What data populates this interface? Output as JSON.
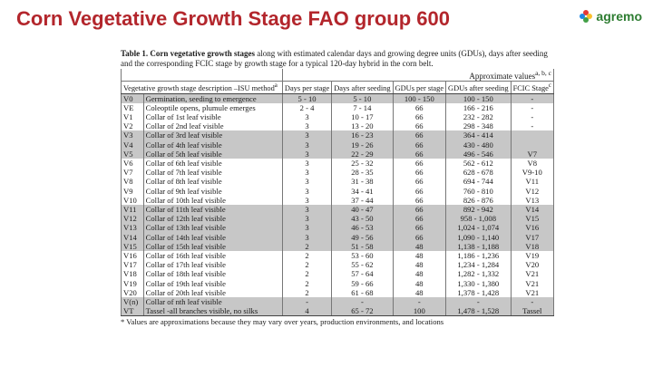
{
  "slide": {
    "title": "Corn Vegetative Growth Stage FAO group 600"
  },
  "logo": {
    "text": "agremo",
    "colors": [
      "#e53935",
      "#fbc02d",
      "#43a047",
      "#1e88e5"
    ]
  },
  "doc": {
    "caption_bold": "Table 1.  Corn vegetative growth stages",
    "caption_rest": " along with estimated calendar days and growing degree units (GDUs), days after seeding and the corresponding FCIC stage by growth stage for a typical 120-day hybrid in the corn belt.",
    "approx_label": "Approximate values",
    "approx_marks": "a, b, c",
    "columns": {
      "desc": "Vegetative growth stage description –ISU method",
      "desc_mark": "a",
      "days_per": "Days per stage",
      "days_after": "Days after seeding",
      "gdu_per": "GDUs per stage",
      "gdu_after": "GDUs after seeding",
      "fcic": "FCIC Stage",
      "fcic_mark": "c"
    },
    "rows": [
      {
        "code": "V0",
        "desc": "Germination, seeding to emergence",
        "days_per": "5 - 10",
        "days_after": "5 - 10",
        "gdu_per": "100 - 150",
        "gdu_after": "100 - 150",
        "fcic": "-"
      },
      {
        "code": "VE",
        "desc": "Coleoptile opens, plumule emerges",
        "days_per": "2 - 4",
        "days_after": "7 - 14",
        "gdu_per": "66",
        "gdu_after": "166 - 216",
        "fcic": "-"
      },
      {
        "code": "V1",
        "desc": "Collar of 1st leaf visible",
        "days_per": "3",
        "days_after": "10 - 17",
        "gdu_per": "66",
        "gdu_after": "232 - 282",
        "fcic": "-"
      },
      {
        "code": "V2",
        "desc": "Collar of 2nd leaf visible",
        "days_per": "3",
        "days_after": "13 - 20",
        "gdu_per": "66",
        "gdu_after": "298 - 348",
        "fcic": "-"
      },
      {
        "code": "V3",
        "desc": "Collar of 3rd leaf visible",
        "days_per": "3",
        "days_after": "16 - 23",
        "gdu_per": "66",
        "gdu_after": "364 - 414",
        "fcic": ""
      },
      {
        "code": "V4",
        "desc": "Collar of 4th leaf visible",
        "days_per": "3",
        "days_after": "19 - 26",
        "gdu_per": "66",
        "gdu_after": "430 - 480",
        "fcic": ""
      },
      {
        "code": "V5",
        "desc": "Collar of 5th leaf visible",
        "days_per": "3",
        "days_after": "22 - 29",
        "gdu_per": "66",
        "gdu_after": "496 - 546",
        "fcic": "V7"
      },
      {
        "code": "V6",
        "desc": "Collar of 6th leaf visible",
        "days_per": "3",
        "days_after": "25 - 32",
        "gdu_per": "66",
        "gdu_after": "562 - 612",
        "fcic": "V8"
      },
      {
        "code": "V7",
        "desc": "Collar of 7th leaf visible",
        "days_per": "3",
        "days_after": "28 - 35",
        "gdu_per": "66",
        "gdu_after": "628 - 678",
        "fcic": "V9-10"
      },
      {
        "code": "V8",
        "desc": "Collar of 8th leaf visible",
        "days_per": "3",
        "days_after": "31 - 38",
        "gdu_per": "66",
        "gdu_after": "694 - 744",
        "fcic": "V11"
      },
      {
        "code": "V9",
        "desc": "Collar of 9th leaf visible",
        "days_per": "3",
        "days_after": "34 - 41",
        "gdu_per": "66",
        "gdu_after": "760 - 810",
        "fcic": "V12"
      },
      {
        "code": "V10",
        "desc": "Collar of 10th leaf visible",
        "days_per": "3",
        "days_after": "37 - 44",
        "gdu_per": "66",
        "gdu_after": "826 - 876",
        "fcic": "V13"
      },
      {
        "code": "V11",
        "desc": "Collar of 11th leaf visible",
        "days_per": "3",
        "days_after": "40 - 47",
        "gdu_per": "66",
        "gdu_after": "892 - 942",
        "fcic": "V14"
      },
      {
        "code": "V12",
        "desc": "Collar of 12th leaf visible",
        "days_per": "3",
        "days_after": "43 - 50",
        "gdu_per": "66",
        "gdu_after": "958 - 1,008",
        "fcic": "V15"
      },
      {
        "code": "V13",
        "desc": "Collar of 13th leaf visible",
        "days_per": "3",
        "days_after": "46 - 53",
        "gdu_per": "66",
        "gdu_after": "1,024 - 1,074",
        "fcic": "V16"
      },
      {
        "code": "V14",
        "desc": "Collar of 14th leaf visible",
        "days_per": "3",
        "days_after": "49 - 56",
        "gdu_per": "66",
        "gdu_after": "1,090 - 1,140",
        "fcic": "V17"
      },
      {
        "code": "V15",
        "desc": "Collar of 15th leaf visible",
        "days_per": "2",
        "days_after": "51 - 58",
        "gdu_per": "48",
        "gdu_after": "1,138 - 1,188",
        "fcic": "V18"
      },
      {
        "code": "V16",
        "desc": "Collar of 16th leaf visible",
        "days_per": "2",
        "days_after": "53 - 60",
        "gdu_per": "48",
        "gdu_after": "1,186 - 1,236",
        "fcic": "V19"
      },
      {
        "code": "V17",
        "desc": "Collar of 17th leaf visible",
        "days_per": "2",
        "days_after": "55 - 62",
        "gdu_per": "48",
        "gdu_after": "1,234 - 1,284",
        "fcic": "V20"
      },
      {
        "code": "V18",
        "desc": "Collar of 18th leaf visible",
        "days_per": "2",
        "days_after": "57 - 64",
        "gdu_per": "48",
        "gdu_after": "1,282 - 1,332",
        "fcic": "V21"
      },
      {
        "code": "V19",
        "desc": "Collar of 19th leaf visible",
        "days_per": "2",
        "days_after": "59 - 66",
        "gdu_per": "48",
        "gdu_after": "1,330 - 1,380",
        "fcic": "V21"
      },
      {
        "code": "V20",
        "desc": "Collar of 20th leaf visible",
        "days_per": "2",
        "days_after": "61 - 68",
        "gdu_per": "48",
        "gdu_after": "1,378 - 1,428",
        "fcic": "V21"
      },
      {
        "code": "V(n)",
        "desc": "Collar of nth leaf visible",
        "days_per": "-",
        "days_after": "-",
        "gdu_per": "-",
        "gdu_after": "-",
        "fcic": "-"
      },
      {
        "code": "VT",
        "desc": "Tassel -all branches visible, no silks",
        "days_per": "4",
        "days_after": "65 - 72",
        "gdu_per": "100",
        "gdu_after": "1,478 - 1,528",
        "fcic": "Tassel"
      }
    ],
    "shaded_rows": [
      0,
      4,
      5,
      6,
      12,
      13,
      14,
      15,
      16,
      22,
      23
    ],
    "footnote": "* Values are approximations because they may vary over years, production environments, and locations"
  }
}
